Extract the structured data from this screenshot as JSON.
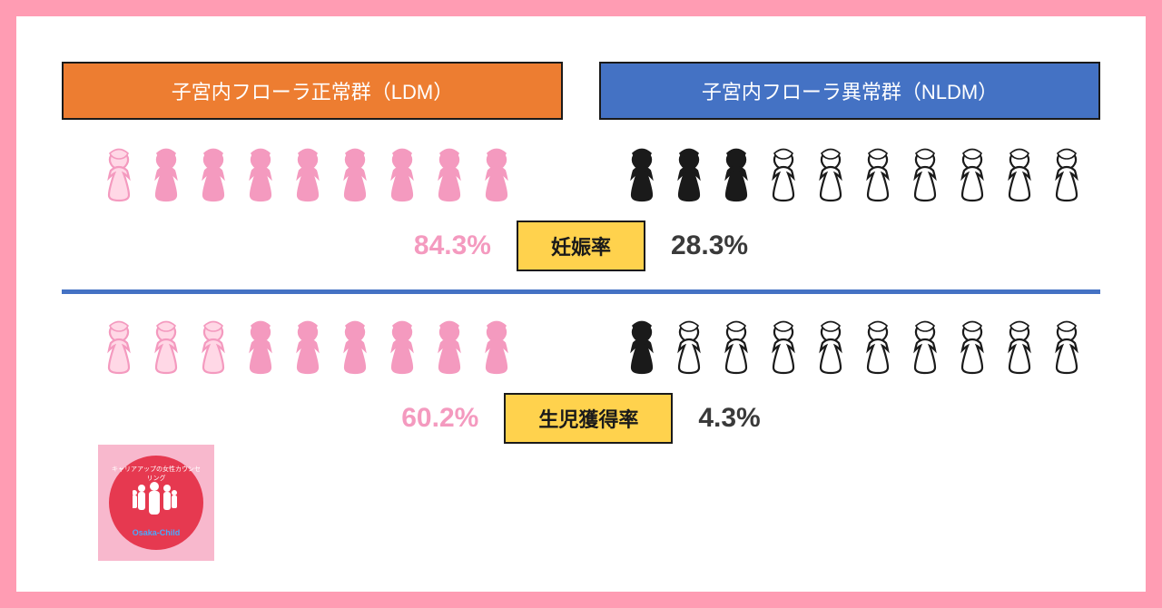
{
  "groups": {
    "ldm": {
      "label": "子宮内フローラ正常群（LDM）",
      "header_bg": "#ed7d31"
    },
    "nldm": {
      "label": "子宮内フローラ異常群（NLDM）",
      "header_bg": "#4472c4"
    }
  },
  "metrics": [
    {
      "label": "妊娠率",
      "ldm": {
        "percent": "84.3%",
        "total_icons": 9,
        "filled": 8,
        "fill_color": "#f49abf",
        "outline_color": "#f49abf",
        "light_fill": "#ffd8e6"
      },
      "nldm": {
        "percent": "28.3%",
        "total_icons": 10,
        "filled": 3,
        "fill_color": "#1a1a1a",
        "outline_color": "#1a1a1a",
        "light_fill": "#ffffff"
      }
    },
    {
      "label": "生児獲得率",
      "ldm": {
        "percent": "60.2%",
        "total_icons": 9,
        "filled": 6,
        "fill_color": "#f49abf",
        "outline_color": "#f49abf",
        "light_fill": "#ffd8e6"
      },
      "nldm": {
        "percent": "4.3%",
        "total_icons": 10,
        "filled": 1,
        "fill_color": "#1a1a1a",
        "outline_color": "#1a1a1a",
        "light_fill": "#ffffff"
      }
    }
  ],
  "styling": {
    "page_bg": "#ff9cb3",
    "card_bg": "#ffffff",
    "divider_color": "#4472c4",
    "metric_label_bg": "#ffd24d",
    "metric_label_border": "#1a1a1a",
    "ldm_pct_color": "#f49abf",
    "nldm_pct_color": "#3a3a3a",
    "pct_fontsize": 30,
    "label_fontsize": 22,
    "header_fontsize": 22
  },
  "logo": {
    "bg": "#f8b8cd",
    "circle": "#e63950",
    "top_text": "キャリアアップの女性カウンセリング",
    "bottom_text": "Osaka-Child"
  }
}
